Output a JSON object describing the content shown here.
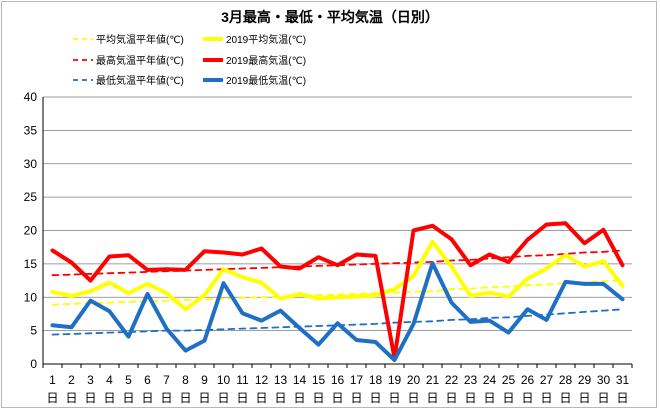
{
  "chart_data": {
    "type": "line",
    "title": "3月最高・最低・平均気温（日別）",
    "xlabel": "",
    "ylabel": "",
    "ylim": [
      0,
      40
    ],
    "y_ticks": [
      "0",
      "5",
      "10",
      "15",
      "20",
      "25",
      "30",
      "35",
      "40"
    ],
    "categories": [
      "1",
      "2",
      "3",
      "4",
      "5",
      "6",
      "7",
      "8",
      "9",
      "10",
      "11",
      "12",
      "13",
      "14",
      "15",
      "16",
      "17",
      "18",
      "19",
      "20",
      "21",
      "22",
      "23",
      "24",
      "25",
      "26",
      "27",
      "28",
      "29",
      "30",
      "31"
    ],
    "day_suffix": "日",
    "grid": true,
    "legend_position": "top-left",
    "series": [
      {
        "name": "平均気温平年値(℃)",
        "color": "#ffff00",
        "dashed": true,
        "values": [
          8.9,
          9.0,
          9.1,
          9.2,
          9.3,
          9.4,
          9.5,
          9.6,
          9.7,
          9.8,
          9.9,
          10.0,
          10.1,
          10.2,
          10.3,
          10.4,
          10.5,
          10.6,
          10.7,
          10.8,
          10.9,
          11.2,
          11.3,
          11.5,
          11.6,
          11.8,
          11.9,
          12.1,
          12.2,
          12.4,
          12.5
        ]
      },
      {
        "name": "2019平均気温(℃)",
        "color": "#ffff00",
        "dashed": false,
        "values": [
          10.8,
          10.2,
          10.9,
          12.2,
          10.6,
          12.0,
          10.6,
          8.2,
          10.3,
          14.2,
          13.0,
          12.2,
          9.8,
          10.5,
          9.8,
          10.0,
          10.1,
          10.3,
          11.2,
          13.2,
          18.3,
          14.6,
          10.2,
          10.7,
          10.1,
          12.8,
          14.3,
          16.3,
          14.6,
          15.4,
          11.7
        ]
      },
      {
        "name": "最高気温平年値(℃)",
        "color": "#ff0000",
        "dashed": true,
        "values": [
          13.3,
          13.4,
          13.5,
          13.6,
          13.7,
          13.8,
          13.9,
          14.0,
          14.1,
          14.2,
          14.3,
          14.4,
          14.5,
          14.6,
          14.7,
          14.8,
          14.9,
          15.0,
          15.1,
          15.2,
          15.3,
          15.5,
          15.6,
          15.8,
          16.0,
          16.2,
          16.3,
          16.5,
          16.7,
          16.8,
          17.0
        ]
      },
      {
        "name": "2019最高気温(℃)",
        "color": "#ff0000",
        "dashed": false,
        "values": [
          17.0,
          15.2,
          12.5,
          16.1,
          16.3,
          14.1,
          14.2,
          14.1,
          16.9,
          16.7,
          16.4,
          17.3,
          14.6,
          14.3,
          16.0,
          14.8,
          16.4,
          16.2,
          0.9,
          20.0,
          20.7,
          18.7,
          14.8,
          16.4,
          15.3,
          18.6,
          20.9,
          21.1,
          18.1,
          20.1,
          14.8
        ]
      },
      {
        "name": "最低気温平年値(℃)",
        "color": "#1f6fc5",
        "dashed": true,
        "values": [
          4.4,
          4.5,
          4.6,
          4.7,
          4.8,
          4.9,
          5.0,
          5.0,
          5.1,
          5.2,
          5.3,
          5.4,
          5.5,
          5.6,
          5.7,
          5.8,
          5.9,
          6.0,
          6.2,
          6.3,
          6.4,
          6.6,
          6.7,
          6.9,
          7.0,
          7.2,
          7.4,
          7.6,
          7.8,
          8.0,
          8.2
        ]
      },
      {
        "name": "2019最低気温(℃)",
        "color": "#1f6fc5",
        "dashed": false,
        "values": [
          5.8,
          5.5,
          9.5,
          7.9,
          4.1,
          10.5,
          5.3,
          2.0,
          3.5,
          12.1,
          7.6,
          6.5,
          8.0,
          5.4,
          2.9,
          6.1,
          3.6,
          3.3,
          0.6,
          6.0,
          15.1,
          9.2,
          6.3,
          6.5,
          4.7,
          8.2,
          6.6,
          12.3,
          12.0,
          12.0,
          9.7
        ]
      }
    ]
  }
}
